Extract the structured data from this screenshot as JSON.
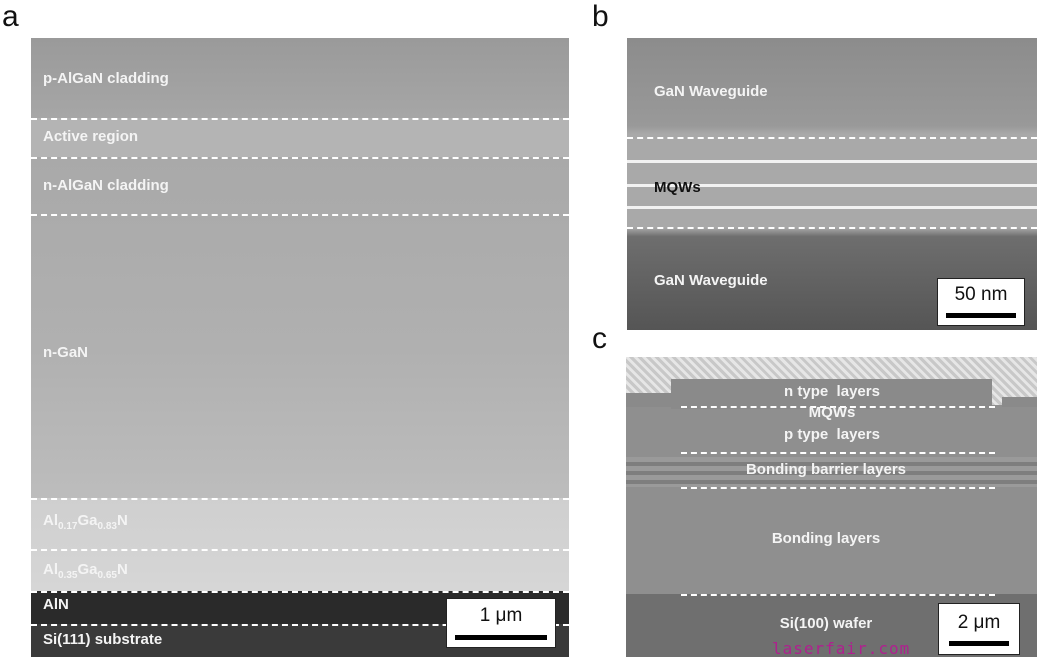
{
  "panel_letters": {
    "a": "a",
    "b": "b",
    "c": "c"
  },
  "panel_a": {
    "labels": {
      "p_cladding": "p-AlGaN cladding",
      "active": "Active region",
      "n_cladding": "n-AlGaN cladding",
      "ngan": "n-GaN",
      "algan1": {
        "a": "Al",
        "x": "0.17",
        "b": "Ga",
        "y": "0.83",
        "c": "N"
      },
      "algan2": {
        "a": "Al",
        "x": "0.35",
        "b": "Ga",
        "y": "0.65",
        "c": "N"
      },
      "aln": "AlN",
      "si": "Si(111) substrate"
    },
    "scale_bar": "1 μm"
  },
  "panel_b": {
    "labels": {
      "top": "GaN Waveguide",
      "mqw": "MQWs",
      "bottom": "GaN Waveguide"
    },
    "scale_bar": "50 nm"
  },
  "panel_c": {
    "labels": {
      "n": "n type  layers",
      "mqw": "MQWs",
      "p": "p type  layers",
      "barrier": "Bonding barrier layers",
      "bonding": "Bonding layers",
      "si": "Si(100) wafer"
    },
    "scale_bar": "2 μm"
  },
  "watermark": "laserfair.com",
  "colors": {
    "watermark": "#b0208f"
  }
}
